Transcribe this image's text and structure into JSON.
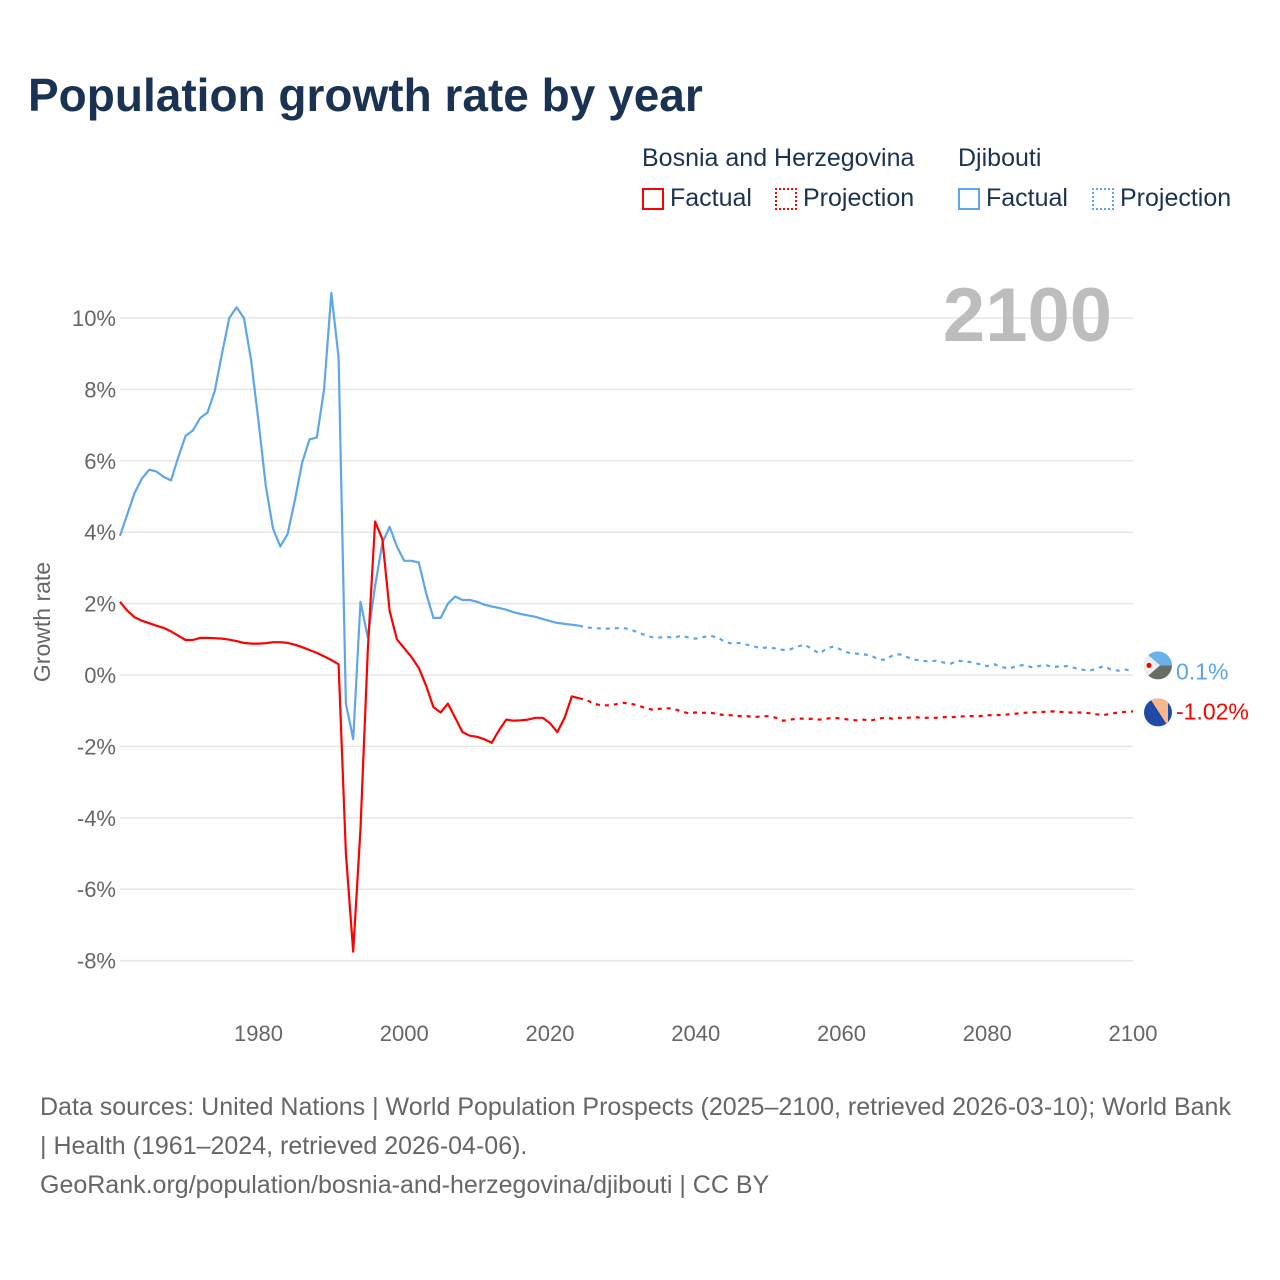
{
  "title": "Population growth rate by year",
  "current_year": "2100",
  "legend": {
    "groups": [
      {
        "name": "Bosnia and Herzegovina",
        "factual": "Factual",
        "projection": "Projection",
        "color": "#ff0000"
      },
      {
        "name": "Djibouti",
        "factual": "Factual",
        "projection": "Projection",
        "color": "#5ea6ea"
      }
    ]
  },
  "source": {
    "line1": "Data sources: United Nations | World Population Prospects (2025–2100, retrieved 2026-03-10); World Bank | Health (1961–2024, retrieved 2026-04-06).",
    "line2": "GeoRank.org/population/bosnia-and-herzegovina/djibouti | CC BY"
  },
  "chart_data": {
    "type": "line",
    "title": "Population growth rate by year",
    "xlabel": "",
    "ylabel": "Growth rate",
    "xlim": [
      1961,
      2100
    ],
    "ylim": [
      -8,
      10
    ],
    "x_ticks": [
      1980,
      2000,
      2020,
      2040,
      2060,
      2080,
      2100
    ],
    "y_ticks": [
      -8,
      -6,
      -4,
      -2,
      0,
      2,
      4,
      6,
      8,
      10
    ],
    "y_tick_labels": [
      "-8%",
      "-6%",
      "-4%",
      "-2%",
      "0%",
      "2%",
      "4%",
      "6%",
      "8%",
      "10%"
    ],
    "x_tick_labels": [
      "1980",
      "2000",
      "2020",
      "2040",
      "2060",
      "2080",
      "2100"
    ],
    "grid": true,
    "legend_position": "top-right",
    "factual_start": 1961,
    "projection_start": 2025,
    "series": [
      {
        "name": "Djibouti",
        "color": "#5ea6ea",
        "end_label": "0.1%",
        "factual": [
          3.9,
          4.5,
          5.1,
          5.5,
          5.75,
          5.7,
          5.55,
          5.45,
          6.1,
          6.7,
          6.85,
          7.2,
          7.35,
          7.95,
          9.0,
          10.0,
          10.3,
          10.0,
          8.8,
          7.1,
          5.3,
          4.1,
          3.6,
          3.95,
          4.9,
          5.95,
          6.6,
          6.65,
          8.0,
          10.7,
          8.9,
          -0.8,
          -1.8,
          2.05,
          1.05,
          2.5,
          3.7,
          4.15,
          3.6,
          3.2,
          3.2,
          3.15,
          2.3,
          1.6,
          1.6,
          2.0,
          2.2,
          2.1,
          2.1,
          2.05,
          1.97,
          1.92,
          1.88,
          1.83,
          1.76,
          1.71,
          1.67,
          1.63,
          1.57,
          1.51,
          1.46,
          1.43,
          1.41,
          1.38
        ],
        "projection": [
          1.33,
          1.32,
          1.3,
          1.3,
          1.31,
          1.32,
          1.28,
          1.2,
          1.12,
          1.06,
          1.05,
          1.07,
          1.04,
          1.1,
          1.05,
          1.02,
          1.06,
          1.1,
          1.05,
          0.93,
          0.88,
          0.9,
          0.85,
          0.8,
          0.75,
          0.78,
          0.74,
          0.7,
          0.72,
          0.8,
          0.85,
          0.72,
          0.6,
          0.75,
          0.8,
          0.7,
          0.62,
          0.6,
          0.58,
          0.55,
          0.45,
          0.42,
          0.55,
          0.58,
          0.5,
          0.43,
          0.4,
          0.38,
          0.4,
          0.35,
          0.32,
          0.4,
          0.38,
          0.35,
          0.3,
          0.25,
          0.3,
          0.22,
          0.18,
          0.25,
          0.28,
          0.22,
          0.25,
          0.28,
          0.22,
          0.24,
          0.25,
          0.2,
          0.15,
          0.12,
          0.18,
          0.25,
          0.15,
          0.12,
          0.15,
          0.1
        ]
      },
      {
        "name": "Bosnia and Herzegovina",
        "color": "#ff0000",
        "end_label": "-1.02%",
        "factual": [
          2.05,
          1.8,
          1.62,
          1.52,
          1.45,
          1.38,
          1.32,
          1.22,
          1.1,
          0.98,
          0.98,
          1.04,
          1.04,
          1.03,
          1.02,
          0.99,
          0.95,
          0.9,
          0.88,
          0.88,
          0.89,
          0.92,
          0.92,
          0.9,
          0.85,
          0.78,
          0.7,
          0.62,
          0.52,
          0.42,
          0.3,
          -5.0,
          -7.75,
          -4.3,
          0.7,
          4.3,
          3.8,
          1.8,
          1.0,
          0.75,
          0.5,
          0.2,
          -0.3,
          -0.9,
          -1.05,
          -0.8,
          -1.2,
          -1.6,
          -1.7,
          -1.73,
          -1.8,
          -1.9,
          -1.55,
          -1.25,
          -1.28,
          -1.27,
          -1.25,
          -1.2,
          -1.2,
          -1.35,
          -1.6,
          -1.2,
          -0.6,
          -0.65
        ],
        "projection": [
          -0.7,
          -0.8,
          -0.85,
          -0.85,
          -0.82,
          -0.78,
          -0.8,
          -0.85,
          -0.92,
          -0.97,
          -0.95,
          -0.93,
          -0.95,
          -1.02,
          -1.07,
          -1.05,
          -1.06,
          -1.05,
          -1.1,
          -1.12,
          -1.13,
          -1.15,
          -1.15,
          -1.18,
          -1.16,
          -1.15,
          -1.2,
          -1.28,
          -1.25,
          -1.22,
          -1.22,
          -1.23,
          -1.25,
          -1.22,
          -1.2,
          -1.22,
          -1.25,
          -1.27,
          -1.25,
          -1.28,
          -1.22,
          -1.2,
          -1.22,
          -1.2,
          -1.2,
          -1.18,
          -1.2,
          -1.2,
          -1.2,
          -1.18,
          -1.18,
          -1.17,
          -1.15,
          -1.15,
          -1.15,
          -1.13,
          -1.12,
          -1.12,
          -1.1,
          -1.08,
          -1.06,
          -1.05,
          -1.04,
          -1.03,
          -1.02,
          -1.03,
          -1.05,
          -1.05,
          -1.05,
          -1.07,
          -1.1,
          -1.12,
          -1.08,
          -1.05,
          -1.03,
          -1.02
        ]
      }
    ]
  }
}
